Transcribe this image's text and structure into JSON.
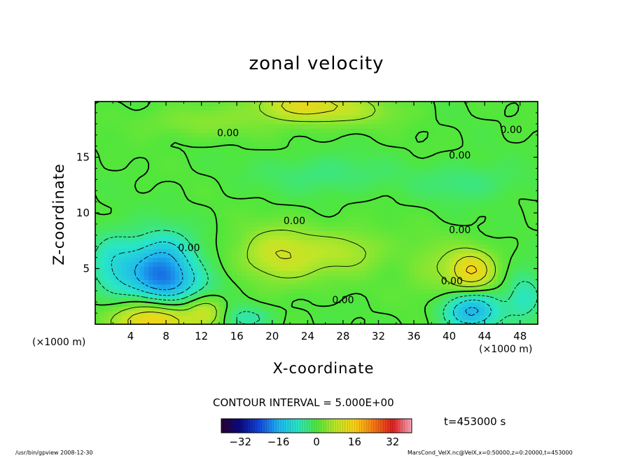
{
  "page": {
    "footer_left": "/usr/bin/gpview  2008-12-30",
    "footer_right": "MarsCond_VelX.nc@VelX,x=0:50000,z=0:20000,t=453000"
  },
  "chart_data": {
    "type": "heatmap",
    "title": "zonal velocity",
    "xlabel": "X-coordinate",
    "ylabel": "Z-coordinate",
    "x_unit_left": "(×1000 m)",
    "x_unit_right": "(×1000 m)",
    "xlim": [
      0,
      50
    ],
    "ylim": [
      0,
      20
    ],
    "x_ticks": [
      4,
      8,
      12,
      16,
      20,
      24,
      28,
      32,
      36,
      40,
      44,
      48
    ],
    "y_ticks": [
      5,
      10,
      15
    ],
    "contour_interval_text": "CONTOUR INTERVAL = 5.000E+00",
    "time_text": "t=453000 s",
    "colorbar": {
      "range": [
        -40,
        40
      ],
      "ticks": [
        -32,
        -16,
        0,
        16,
        32
      ]
    },
    "contour_labels": [
      {
        "text": "0.00",
        "x": 15.0,
        "z": 17.2
      },
      {
        "text": "0.00",
        "x": 47.0,
        "z": 17.5
      },
      {
        "text": "0.00",
        "x": 41.2,
        "z": 15.2
      },
      {
        "text": "0.00",
        "x": 22.5,
        "z": 9.3
      },
      {
        "text": "0.00",
        "x": 41.2,
        "z": 8.5
      },
      {
        "text": "0.00",
        "x": 10.6,
        "z": 6.9
      },
      {
        "text": "0.00",
        "x": 28.0,
        "z": 2.2
      },
      {
        "text": "0.00",
        "x": 40.3,
        "z": 3.9
      }
    ],
    "features": [
      {
        "kind": "max",
        "x": 23.0,
        "z": 19.8,
        "amp": 10,
        "sx": 3.5,
        "sz": 1.0
      },
      {
        "kind": "max",
        "x": 28.0,
        "z": 19.2,
        "amp": 6,
        "sx": 4.5,
        "sz": 1.0
      },
      {
        "kind": "max",
        "x": 12.0,
        "z": 18.2,
        "amp": 4,
        "sx": 5.0,
        "sz": 1.0
      },
      {
        "kind": "max",
        "x": 21.0,
        "z": 6.2,
        "amp": 10,
        "sx": 3.5,
        "sz": 1.8
      },
      {
        "kind": "max",
        "x": 29.0,
        "z": 6.6,
        "amp": 6,
        "sx": 3.0,
        "sz": 1.4
      },
      {
        "kind": "max",
        "x": 42.5,
        "z": 4.8,
        "amp": 15,
        "sx": 1.8,
        "sz": 1.3
      },
      {
        "kind": "max",
        "x": 6.5,
        "z": 0.3,
        "amp": 16,
        "sx": 3.0,
        "sz": 1.2
      },
      {
        "kind": "max",
        "x": 12.5,
        "z": 1.0,
        "amp": 9,
        "sx": 1.5,
        "sz": 1.0
      },
      {
        "kind": "max",
        "x": 38.0,
        "z": 5.0,
        "amp": 4,
        "sx": 2.2,
        "sz": 2.0
      },
      {
        "kind": "min",
        "x": 7.5,
        "z": 5.2,
        "amp": -18,
        "sx": 2.6,
        "sz": 2.0
      },
      {
        "kind": "min",
        "x": 42.5,
        "z": 1.2,
        "amp": -16,
        "sx": 2.2,
        "sz": 1.2
      },
      {
        "kind": "min",
        "x": 2.0,
        "z": 5.5,
        "amp": -8,
        "sx": 2.0,
        "sz": 2.0
      },
      {
        "kind": "min",
        "x": 26.0,
        "z": 13.5,
        "amp": -4,
        "sx": 5.0,
        "sz": 1.2
      },
      {
        "kind": "min",
        "x": 42.0,
        "z": 12.8,
        "amp": -4,
        "sx": 4.0,
        "sz": 1.2
      },
      {
        "kind": "min",
        "x": 9.0,
        "z": 3.6,
        "amp": -6,
        "sx": 4.0,
        "sz": 1.2
      },
      {
        "kind": "min",
        "x": 48.5,
        "z": 2.5,
        "amp": -8,
        "sx": 1.5,
        "sz": 1.5
      },
      {
        "kind": "min",
        "x": 17.0,
        "z": 0.6,
        "amp": -7,
        "sx": 2.0,
        "sz": 0.8
      }
    ]
  }
}
